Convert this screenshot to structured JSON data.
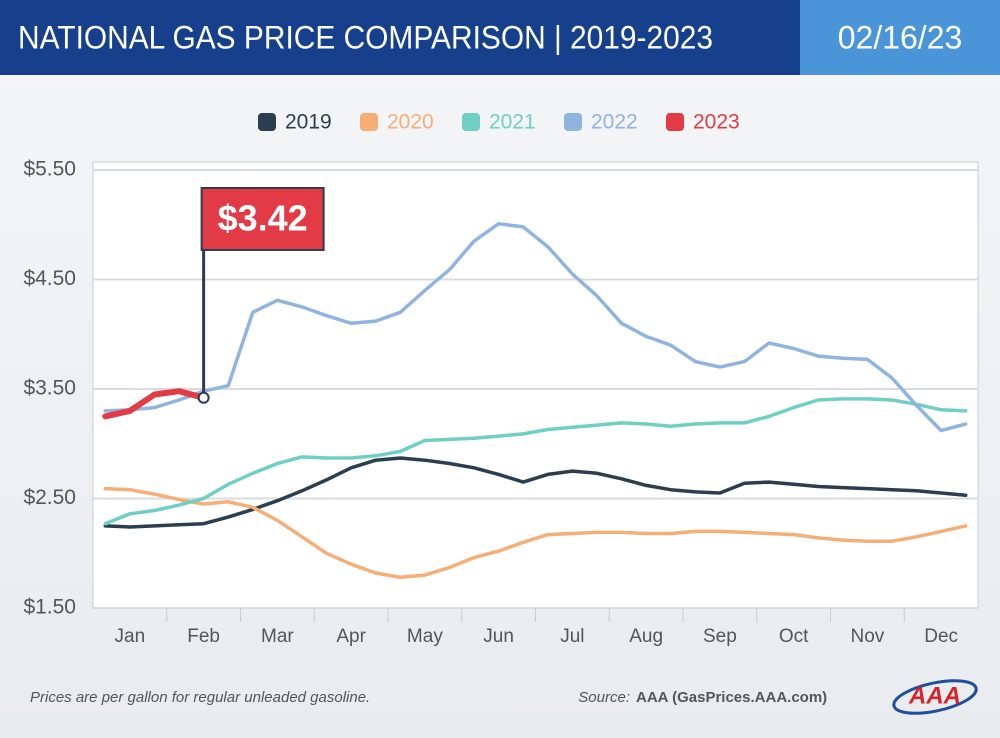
{
  "chart_data": {
    "type": "line",
    "title": "NATIONAL GAS PRICE COMPARISON | 2019-2023",
    "date": "02/16/23",
    "note": "Prices are per gallon for regular unleaded gasoline.",
    "source_label": "Source:",
    "source": "AAA (GasPrices.AAA.com)",
    "logo": "AAA",
    "categories": [
      null,
      "Jan",
      null,
      null,
      "Feb",
      null,
      null,
      "Mar",
      null,
      null,
      "Apr",
      null,
      null,
      "May",
      null,
      null,
      "Jun",
      null,
      null,
      "Jul",
      null,
      null,
      "Aug",
      null,
      null,
      "Sep",
      null,
      null,
      "Oct",
      null,
      null,
      "Nov",
      null,
      null,
      "Dec",
      null
    ],
    "ylim": [
      1.5,
      5.5
    ],
    "yticks": [
      {
        "value": 1.5,
        "label": "$1.50"
      },
      {
        "value": 2.5,
        "label": "$2.50"
      },
      {
        "value": 3.5,
        "label": "$3.50"
      },
      {
        "value": 4.5,
        "label": "$4.50"
      },
      {
        "value": 5.5,
        "label": "$5.50"
      }
    ],
    "grid": true,
    "legend": "top",
    "series": [
      {
        "name": "2019",
        "color": "#2b3e50",
        "values": [
          2.25,
          2.24,
          2.25,
          2.26,
          2.27,
          2.33,
          2.4,
          2.48,
          2.57,
          2.67,
          2.78,
          2.85,
          2.87,
          2.85,
          2.82,
          2.78,
          2.72,
          2.65,
          2.72,
          2.75,
          2.73,
          2.68,
          2.62,
          2.58,
          2.56,
          2.55,
          2.64,
          2.65,
          2.63,
          2.61,
          2.6,
          2.59,
          2.58,
          2.57,
          2.55,
          2.53
        ]
      },
      {
        "name": "2020",
        "color": "#f6ad76",
        "values": [
          2.59,
          2.58,
          2.54,
          2.49,
          2.45,
          2.47,
          2.42,
          2.3,
          2.15,
          2.0,
          1.9,
          1.82,
          1.78,
          1.8,
          1.87,
          1.96,
          2.02,
          2.1,
          2.17,
          2.18,
          2.19,
          2.19,
          2.18,
          2.18,
          2.2,
          2.2,
          2.19,
          2.18,
          2.17,
          2.14,
          2.12,
          2.11,
          2.11,
          2.15,
          2.2,
          2.25
        ]
      },
      {
        "name": "2021",
        "color": "#70cfc4",
        "values": [
          2.27,
          2.36,
          2.39,
          2.44,
          2.5,
          2.63,
          2.73,
          2.82,
          2.88,
          2.87,
          2.87,
          2.89,
          2.93,
          3.03,
          3.04,
          3.05,
          3.07,
          3.09,
          3.13,
          3.15,
          3.17,
          3.19,
          3.18,
          3.16,
          3.18,
          3.19,
          3.19,
          3.25,
          3.33,
          3.4,
          3.41,
          3.41,
          3.4,
          3.36,
          3.31,
          3.3
        ]
      },
      {
        "name": "2022",
        "color": "#8fb4e0",
        "values": [
          3.3,
          3.31,
          3.33,
          3.4,
          3.48,
          3.53,
          4.2,
          4.31,
          4.25,
          4.17,
          4.1,
          4.12,
          4.2,
          4.4,
          4.59,
          4.85,
          5.01,
          4.98,
          4.8,
          4.55,
          4.35,
          4.1,
          3.98,
          3.9,
          3.75,
          3.7,
          3.75,
          3.92,
          3.87,
          3.8,
          3.78,
          3.77,
          3.6,
          3.35,
          3.12,
          3.18
        ]
      },
      {
        "name": "2023",
        "color": "#e23b46",
        "values": [
          3.25,
          3.3,
          3.45,
          3.48,
          3.42,
          null,
          null,
          null,
          null,
          null,
          null,
          null,
          null,
          null,
          null,
          null,
          null,
          null,
          null,
          null,
          null,
          null,
          null,
          null,
          null,
          null,
          null,
          null,
          null,
          null,
          null,
          null,
          null,
          null,
          null,
          null
        ],
        "value_labels": [
          null,
          null,
          null,
          null,
          "$3.42",
          null,
          null,
          null,
          null,
          null,
          null,
          null,
          null,
          null,
          null,
          null,
          null,
          null,
          null,
          null,
          null,
          null,
          null,
          null,
          null,
          null,
          null,
          null,
          null,
          null,
          null,
          null,
          null,
          null,
          null,
          null
        ]
      }
    ]
  }
}
